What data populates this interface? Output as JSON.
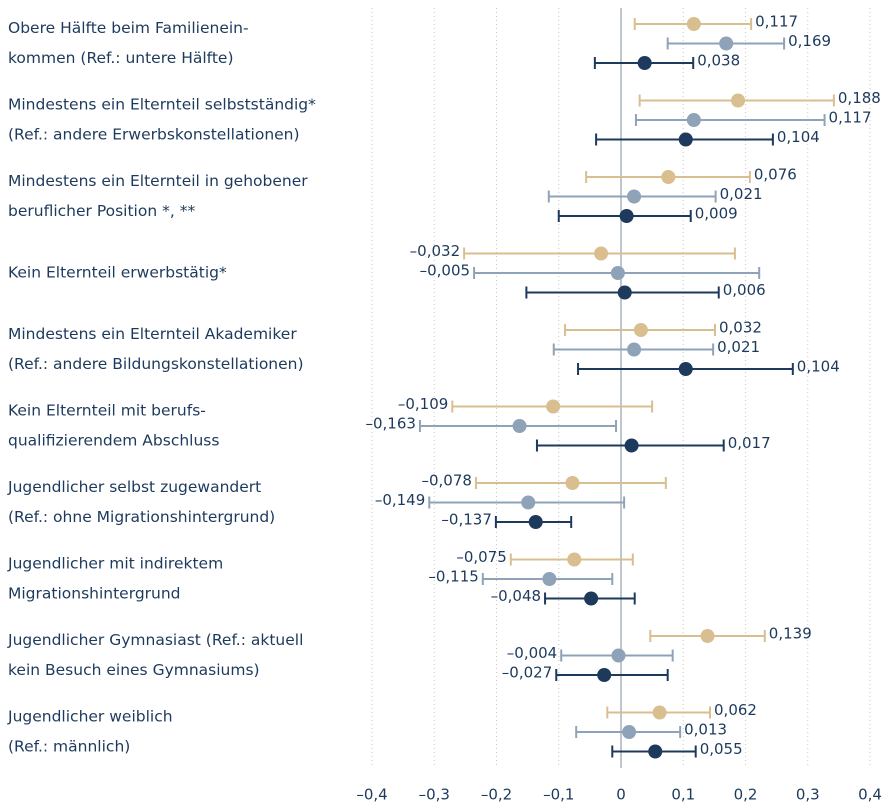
{
  "chart_data": {
    "type": "forest",
    "categories": [
      [
        "Obere Hälfte beim Familienein-",
        "kommen  (Ref.: untere Hälfte)"
      ],
      [
        "Mindestens ein Elternteil selbstständig*",
        "(Ref.: andere Erwerbskonstellationen)"
      ],
      [
        "Mindestens ein Elternteil in gehobener",
        "beruflicher Position *, **"
      ],
      [
        "Kein Elternteil erwerbstätig*"
      ],
      [
        "Mindestens ein Elternteil Akademiker",
        "(Ref.: andere Bildungskonstellationen)"
      ],
      [
        "Kein Elternteil mit berufs-",
        "qualifizierendem Abschluss"
      ],
      [
        "Jugendlicher selbst zugewandert",
        "(Ref.: ohne Migrationshintergrund)"
      ],
      [
        "Jugendlicher mit indirektem",
        "Migrationshintergrund"
      ],
      [
        "Jugendlicher Gymnasiast (Ref.: aktuell",
        "kein Besuch eines Gymnasiums)"
      ],
      [
        "Jugendlicher weiblich",
        "(Ref.: männlich)"
      ]
    ],
    "series": [
      {
        "color": "#d9bf8f",
        "values": [
          0.117,
          0.188,
          0.076,
          -0.032,
          0.032,
          -0.109,
          -0.078,
          -0.075,
          0.139,
          0.062
        ],
        "value_labels": [
          "0,117",
          "0,188",
          "0,076",
          "–0,032",
          "0,032",
          "–0,109",
          "–0,078",
          "–0,075",
          "0,139",
          "0,062"
        ],
        "ci_low": [
          0.022,
          0.03,
          -0.056,
          -0.252,
          -0.09,
          -0.271,
          -0.233,
          -0.177,
          0.047,
          -0.022
        ],
        "ci_high": [
          0.209,
          0.342,
          0.207,
          0.183,
          0.151,
          0.05,
          0.072,
          0.019,
          0.231,
          0.143
        ]
      },
      {
        "color": "#8fa3b8",
        "values": [
          0.169,
          0.117,
          0.021,
          -0.005,
          0.021,
          -0.163,
          -0.149,
          -0.115,
          -0.004,
          0.013
        ],
        "value_labels": [
          "0,169",
          "0,117",
          "0,021",
          "–0,005",
          "0,021",
          "–0,163",
          "–0,149",
          "–0,115",
          "–0,004",
          "0,013"
        ],
        "ci_low": [
          0.075,
          0.024,
          -0.116,
          -0.236,
          -0.108,
          -0.323,
          -0.308,
          -0.222,
          -0.096,
          -0.072
        ],
        "ci_high": [
          0.262,
          0.327,
          0.152,
          0.222,
          0.148,
          -0.008,
          0.005,
          -0.014,
          0.083,
          0.095
        ]
      },
      {
        "color": "#1d3a5c",
        "values": [
          0.038,
          0.104,
          0.009,
          0.006,
          0.104,
          0.017,
          -0.137,
          -0.048,
          -0.027,
          0.055
        ],
        "value_labels": [
          "0,038",
          "0,104",
          "0,009",
          "0,006",
          "0,104",
          "0,017",
          "–0,137",
          "–0,048",
          "–0,027",
          "0,055"
        ],
        "ci_low": [
          -0.042,
          -0.04,
          -0.1,
          -0.152,
          -0.069,
          -0.135,
          -0.201,
          -0.122,
          -0.104,
          -0.014
        ],
        "ci_high": [
          0.116,
          0.244,
          0.112,
          0.157,
          0.276,
          0.165,
          -0.08,
          0.022,
          0.075,
          0.12
        ]
      }
    ],
    "xlim": [
      -0.4,
      0.4
    ],
    "xticks": [
      {
        "value": -0.4,
        "label": "–0,4"
      },
      {
        "value": -0.3,
        "label": "–0,3"
      },
      {
        "value": -0.2,
        "label": "–0,2"
      },
      {
        "value": -0.1,
        "label": "–0,1"
      },
      0,
      {
        "value": 0.1,
        "label": "0,1"
      },
      {
        "value": 0.2,
        "label": "0,2"
      },
      {
        "value": 0.3,
        "label": "0,3"
      },
      {
        "value": 0.4,
        "label": "0,4"
      }
    ],
    "grid": true
  }
}
